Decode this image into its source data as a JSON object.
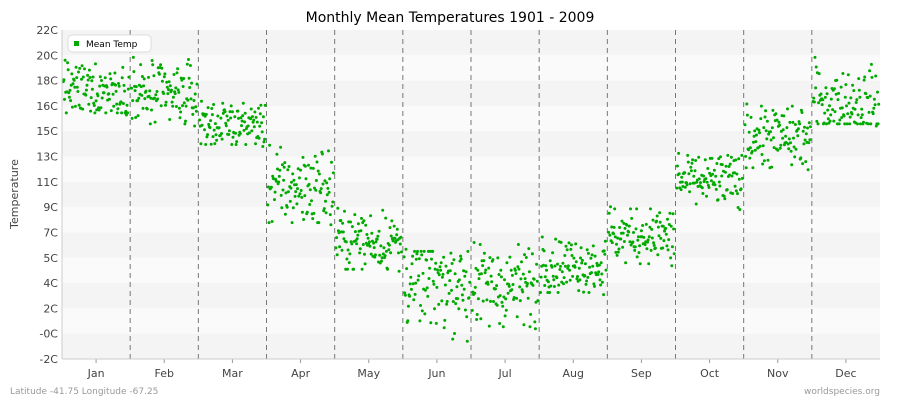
{
  "chart_data": {
    "type": "scatter",
    "title": "Monthly Mean Temperatures 1901 - 2009",
    "ylabel": "Temperature",
    "xlabel": "",
    "y_tick_labels": [
      "-2C",
      "-0C",
      "2C",
      "4C",
      "5C",
      "7C",
      "9C",
      "11C",
      "13C",
      "15C",
      "16C",
      "18C",
      "20C",
      "22C"
    ],
    "ylim": [
      -2,
      22
    ],
    "categories": [
      "Jan",
      "Feb",
      "Mar",
      "Apr",
      "May",
      "Jun",
      "Jul",
      "Aug",
      "Sep",
      "Oct",
      "Nov",
      "Dec"
    ],
    "series": [
      {
        "name": "Mean Temp",
        "color": "#00aa00",
        "points_per_month": 109,
        "monthly": [
          {
            "month": "Jan",
            "center": 17.6,
            "min": 15.8,
            "max": 19.8
          },
          {
            "month": "Feb",
            "center": 17.2,
            "min": 15.0,
            "max": 20.0
          },
          {
            "month": "Mar",
            "center": 15.1,
            "min": 13.5,
            "max": 16.8
          },
          {
            "month": "Apr",
            "center": 10.5,
            "min": 7.8,
            "max": 13.6
          },
          {
            "month": "May",
            "center": 6.6,
            "min": 4.4,
            "max": 9.0
          },
          {
            "month": "Jun",
            "center": 3.6,
            "min": -0.7,
            "max": 6.0
          },
          {
            "month": "Jul",
            "center": 3.3,
            "min": 0.2,
            "max": 6.5
          },
          {
            "month": "Aug",
            "center": 4.9,
            "min": 2.7,
            "max": 6.9
          },
          {
            "month": "Sep",
            "center": 7.0,
            "min": 4.8,
            "max": 9.1
          },
          {
            "month": "Oct",
            "center": 11.0,
            "min": 8.9,
            "max": 13.0
          },
          {
            "month": "Nov",
            "center": 14.2,
            "min": 11.8,
            "max": 16.6
          },
          {
            "month": "Dec",
            "center": 16.7,
            "min": 15.0,
            "max": 20.0
          }
        ]
      }
    ],
    "grid": true,
    "legend_position": "top-left"
  },
  "footer": {
    "location": "Latitude -41.75 Longitude -67.25",
    "source": "worldspecies.org"
  }
}
